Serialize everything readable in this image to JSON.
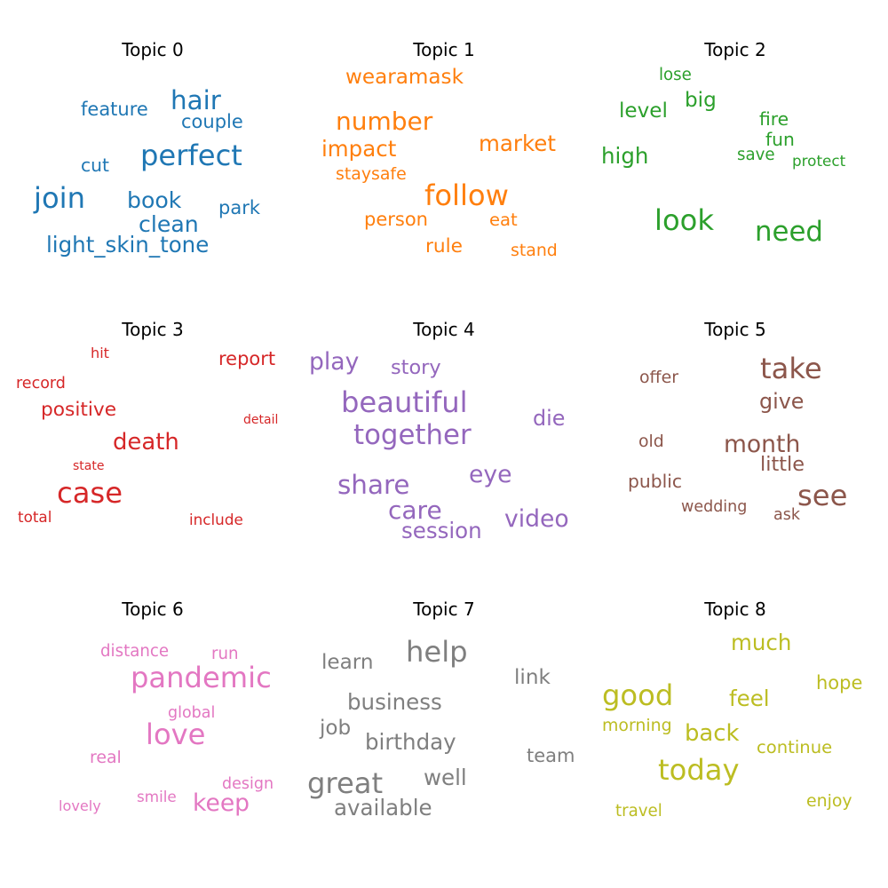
{
  "chart_data": {
    "type": "wordcloud",
    "panels": [
      {
        "title": "Topic 0",
        "color": "#1f77b4",
        "words": [
          {
            "text": "perfect",
            "weight": 2.3
          },
          {
            "text": "join",
            "weight": 2.3
          },
          {
            "text": "hair",
            "weight": 2.1
          },
          {
            "text": "book",
            "weight": 1.8
          },
          {
            "text": "clean",
            "weight": 1.8
          },
          {
            "text": "light_skin_tone",
            "weight": 1.75
          },
          {
            "text": "couple",
            "weight": 1.5
          },
          {
            "text": "feature",
            "weight": 1.5
          },
          {
            "text": "park",
            "weight": 1.5
          },
          {
            "text": "cut",
            "weight": 1.45
          }
        ]
      },
      {
        "title": "Topic 1",
        "color": "#ff7f0e",
        "words": [
          {
            "text": "follow",
            "weight": 2.3
          },
          {
            "text": "number",
            "weight": 2.0
          },
          {
            "text": "impact",
            "weight": 1.75
          },
          {
            "text": "market",
            "weight": 1.75
          },
          {
            "text": "wearamask",
            "weight": 1.65
          },
          {
            "text": "rule",
            "weight": 1.55
          },
          {
            "text": "person",
            "weight": 1.5
          },
          {
            "text": "eat",
            "weight": 1.4
          },
          {
            "text": "staysafe",
            "weight": 1.35
          },
          {
            "text": "stand",
            "weight": 1.35
          }
        ]
      },
      {
        "title": "Topic 2",
        "color": "#2ca02c",
        "words": [
          {
            "text": "look",
            "weight": 2.3
          },
          {
            "text": "need",
            "weight": 2.2
          },
          {
            "text": "high",
            "weight": 1.75
          },
          {
            "text": "level",
            "weight": 1.65
          },
          {
            "text": "big",
            "weight": 1.65
          },
          {
            "text": "fire",
            "weight": 1.45
          },
          {
            "text": "fun",
            "weight": 1.45
          },
          {
            "text": "lose",
            "weight": 1.3
          },
          {
            "text": "save",
            "weight": 1.3
          },
          {
            "text": "protect",
            "weight": 1.2
          }
        ]
      },
      {
        "title": "Topic 3",
        "color": "#d62728",
        "words": [
          {
            "text": "case",
            "weight": 2.3
          },
          {
            "text": "death",
            "weight": 1.85
          },
          {
            "text": "positive",
            "weight": 1.55
          },
          {
            "text": "report",
            "weight": 1.5
          },
          {
            "text": "record",
            "weight": 1.25
          },
          {
            "text": "total",
            "weight": 1.2
          },
          {
            "text": "include",
            "weight": 1.2
          },
          {
            "text": "hit",
            "weight": 1.15
          },
          {
            "text": "state",
            "weight": 1.0
          },
          {
            "text": "detail",
            "weight": 1.0
          }
        ]
      },
      {
        "title": "Topic 4",
        "color": "#9467bd",
        "words": [
          {
            "text": "beautiful",
            "weight": 2.3
          },
          {
            "text": "together",
            "weight": 2.2
          },
          {
            "text": "share",
            "weight": 2.1
          },
          {
            "text": "care",
            "weight": 2.0
          },
          {
            "text": "play",
            "weight": 1.9
          },
          {
            "text": "eye",
            "weight": 1.9
          },
          {
            "text": "video",
            "weight": 1.9
          },
          {
            "text": "session",
            "weight": 1.75
          },
          {
            "text": "die",
            "weight": 1.7
          },
          {
            "text": "story",
            "weight": 1.6
          }
        ]
      },
      {
        "title": "Topic 5",
        "color": "#8c564b",
        "words": [
          {
            "text": "take",
            "weight": 2.3
          },
          {
            "text": "see",
            "weight": 2.3
          },
          {
            "text": "month",
            "weight": 1.9
          },
          {
            "text": "give",
            "weight": 1.7
          },
          {
            "text": "little",
            "weight": 1.6
          },
          {
            "text": "public",
            "weight": 1.45
          },
          {
            "text": "offer",
            "weight": 1.35
          },
          {
            "text": "old",
            "weight": 1.35
          },
          {
            "text": "wedding",
            "weight": 1.25
          },
          {
            "text": "ask",
            "weight": 1.25
          }
        ]
      },
      {
        "title": "Topic 6",
        "color": "#e377c2",
        "words": [
          {
            "text": "pandemic",
            "weight": 2.3
          },
          {
            "text": "love",
            "weight": 2.3
          },
          {
            "text": "keep",
            "weight": 1.9
          },
          {
            "text": "real",
            "weight": 1.35
          },
          {
            "text": "distance",
            "weight": 1.3
          },
          {
            "text": "run",
            "weight": 1.3
          },
          {
            "text": "global",
            "weight": 1.25
          },
          {
            "text": "design",
            "weight": 1.25
          },
          {
            "text": "smile",
            "weight": 1.2
          },
          {
            "text": "lovely",
            "weight": 1.15
          }
        ]
      },
      {
        "title": "Topic 7",
        "color": "#7f7f7f",
        "words": [
          {
            "text": "help",
            "weight": 2.3
          },
          {
            "text": "great",
            "weight": 2.3
          },
          {
            "text": "business",
            "weight": 1.75
          },
          {
            "text": "birthday",
            "weight": 1.75
          },
          {
            "text": "well",
            "weight": 1.75
          },
          {
            "text": "available",
            "weight": 1.75
          },
          {
            "text": "learn",
            "weight": 1.65
          },
          {
            "text": "job",
            "weight": 1.65
          },
          {
            "text": "link",
            "weight": 1.65
          },
          {
            "text": "team",
            "weight": 1.5
          }
        ]
      },
      {
        "title": "Topic 8",
        "color": "#bcbd22",
        "words": [
          {
            "text": "good",
            "weight": 2.3
          },
          {
            "text": "today",
            "weight": 2.3
          },
          {
            "text": "back",
            "weight": 1.85
          },
          {
            "text": "feel",
            "weight": 1.75
          },
          {
            "text": "much",
            "weight": 1.75
          },
          {
            "text": "hope",
            "weight": 1.5
          },
          {
            "text": "continue",
            "weight": 1.4
          },
          {
            "text": "morning",
            "weight": 1.35
          },
          {
            "text": "enjoy",
            "weight": 1.35
          },
          {
            "text": "travel",
            "weight": 1.3
          }
        ]
      }
    ]
  }
}
